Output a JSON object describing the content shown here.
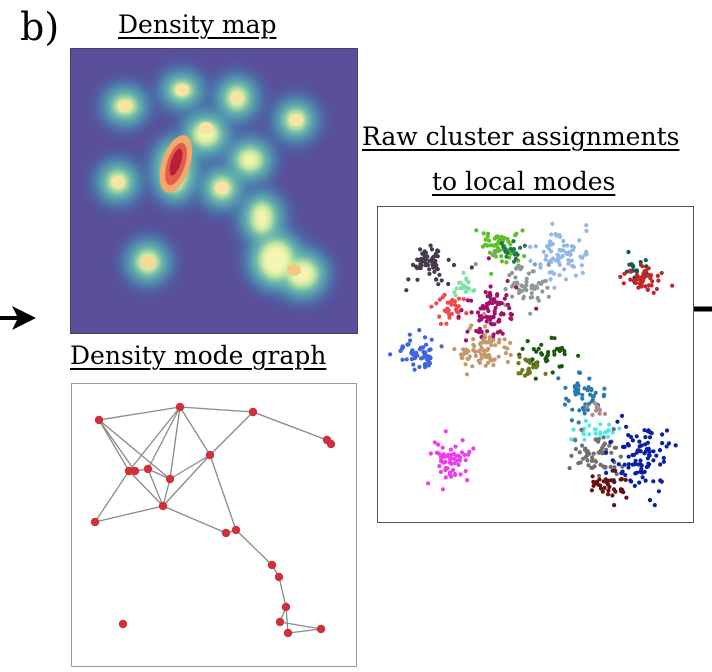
{
  "panel_label": "b)",
  "panels": {
    "density_map": {
      "title": "Density map"
    },
    "mode_graph": {
      "title": "Density mode graph"
    },
    "cluster_assignments": {
      "title_line1": "Raw cluster assignments",
      "title_line2": "to local modes"
    }
  },
  "colors": {
    "density_background": "#5a4f9a",
    "node": "#d0303c",
    "edge": "#8a8a8a",
    "frame": "#9a9a9a"
  },
  "icons": [
    "arrow-right-icon"
  ]
}
